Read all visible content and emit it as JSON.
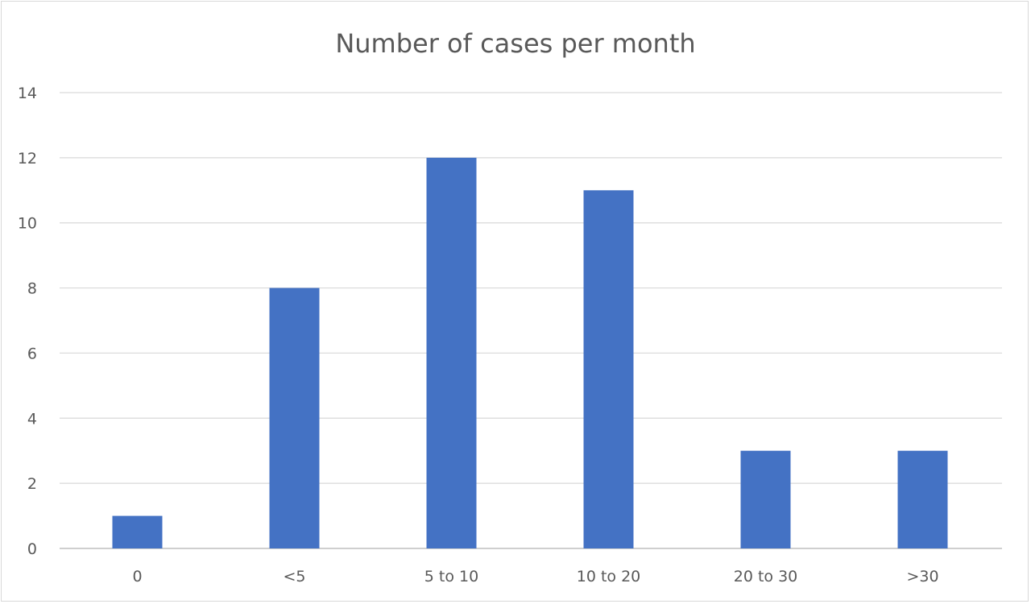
{
  "chart_data": {
    "type": "bar",
    "title": "Number of cases per month",
    "xlabel": "",
    "ylabel": "",
    "categories": [
      "0",
      "<5",
      "5 to 10",
      "10 to 20",
      "20 to 30",
      ">30"
    ],
    "values": [
      1,
      8,
      12,
      11,
      3,
      3
    ],
    "ylim": [
      0,
      14
    ],
    "yticks": [
      "0",
      "2",
      "4",
      "6",
      "8",
      "10",
      "12",
      "14"
    ],
    "grid": true,
    "legend": "none",
    "colors": {
      "bar": "#4472C4",
      "grid": "#d9d9d9",
      "axis": "#bfbfbf",
      "text": "#595959"
    }
  }
}
